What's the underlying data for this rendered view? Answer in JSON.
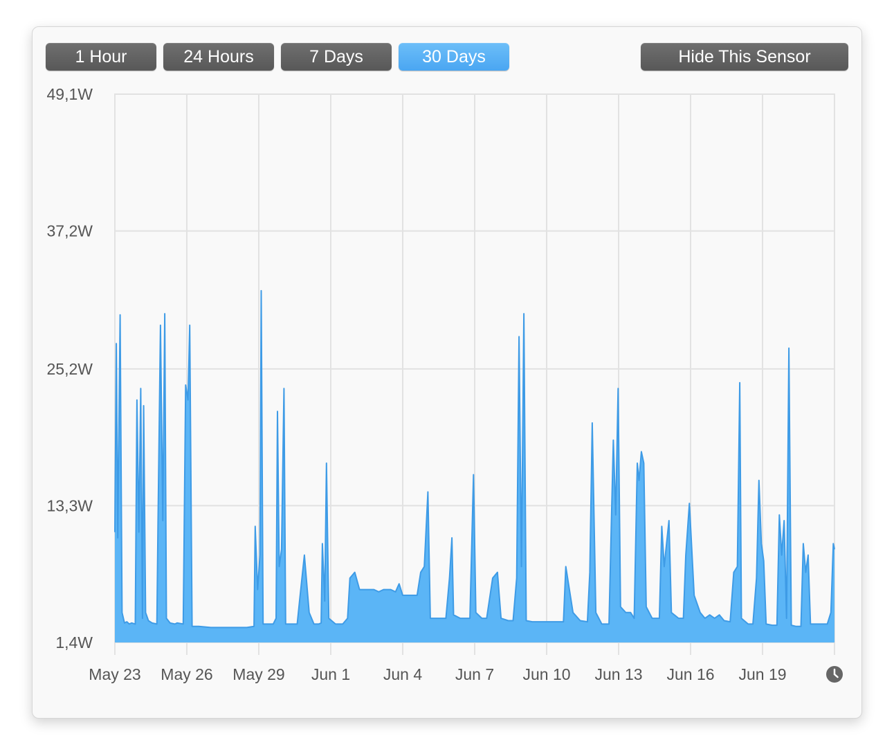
{
  "range_buttons": [
    {
      "label": "1 Hour",
      "active": false
    },
    {
      "label": "24 Hours",
      "active": false
    },
    {
      "label": "7 Days",
      "active": false
    },
    {
      "label": "30 Days",
      "active": true
    }
  ],
  "hide_button_label": "Hide This Sensor",
  "clock_icon": "clock-icon",
  "colors": {
    "accent": "#5ab4f5",
    "fill": "#5bb5f6",
    "stroke": "#3e9be6",
    "grid": "#e2e2e2",
    "button": "#646464"
  },
  "chart_data": {
    "type": "area",
    "title": "",
    "xlabel": "",
    "ylabel": "",
    "y_tick_labels": [
      "49,1W",
      "37,2W",
      "25,2W",
      "13,3W",
      "1,4W"
    ],
    "y_ticks": [
      49.1,
      37.2,
      25.2,
      13.3,
      1.4
    ],
    "ylim": [
      1.4,
      49.1
    ],
    "x_tick_labels": [
      "May 23",
      "May 26",
      "May 29",
      "Jun 1",
      "Jun 4",
      "Jun 7",
      "Jun 10",
      "Jun 13",
      "Jun 16",
      "Jun 19"
    ],
    "x_ticks": [
      0,
      3,
      6,
      9,
      12,
      15,
      18,
      21,
      24,
      27
    ],
    "xlim": [
      0,
      30
    ],
    "x_units": "days since May 23",
    "grid": true,
    "series": [
      {
        "name": "",
        "points": [
          [
            0.0,
            11.0
          ],
          [
            0.06,
            27.4
          ],
          [
            0.12,
            10.5
          ],
          [
            0.22,
            29.9
          ],
          [
            0.3,
            4.0
          ],
          [
            0.4,
            3.1
          ],
          [
            0.5,
            3.2
          ],
          [
            0.6,
            3.0
          ],
          [
            0.7,
            3.1
          ],
          [
            0.85,
            3.0
          ],
          [
            0.92,
            22.5
          ],
          [
            1.0,
            11.0
          ],
          [
            1.08,
            23.5
          ],
          [
            1.15,
            3.5
          ],
          [
            1.2,
            22.0
          ],
          [
            1.28,
            4.0
          ],
          [
            1.4,
            3.3
          ],
          [
            1.55,
            3.1
          ],
          [
            1.75,
            3.0
          ],
          [
            1.8,
            12.0
          ],
          [
            1.9,
            29.0
          ],
          [
            2.0,
            12.0
          ],
          [
            2.08,
            30.0
          ],
          [
            2.15,
            3.5
          ],
          [
            2.3,
            3.1
          ],
          [
            2.5,
            3.0
          ],
          [
            2.6,
            3.1
          ],
          [
            2.85,
            3.0
          ],
          [
            2.95,
            23.8
          ],
          [
            3.05,
            22.5
          ],
          [
            3.12,
            29.0
          ],
          [
            3.22,
            2.8
          ],
          [
            3.5,
            2.8
          ],
          [
            4.0,
            2.7
          ],
          [
            4.5,
            2.7
          ],
          [
            5.0,
            2.7
          ],
          [
            5.5,
            2.7
          ],
          [
            5.8,
            2.8
          ],
          [
            5.85,
            11.5
          ],
          [
            5.95,
            6.0
          ],
          [
            6.05,
            9.0
          ],
          [
            6.1,
            32.0
          ],
          [
            6.18,
            3.0
          ],
          [
            6.4,
            3.0
          ],
          [
            6.6,
            3.0
          ],
          [
            6.72,
            3.5
          ],
          [
            6.78,
            21.5
          ],
          [
            6.85,
            8.0
          ],
          [
            6.95,
            9.5
          ],
          [
            7.05,
            23.5
          ],
          [
            7.12,
            3.0
          ],
          [
            7.4,
            3.0
          ],
          [
            7.6,
            3.0
          ],
          [
            7.7,
            5.0
          ],
          [
            7.8,
            7.0
          ],
          [
            7.9,
            9.0
          ],
          [
            8.1,
            4.0
          ],
          [
            8.3,
            3.0
          ],
          [
            8.5,
            3.0
          ],
          [
            8.6,
            3.1
          ],
          [
            8.65,
            10.0
          ],
          [
            8.75,
            5.0
          ],
          [
            8.82,
            17.0
          ],
          [
            8.92,
            3.5
          ],
          [
            9.2,
            3.0
          ],
          [
            9.5,
            3.0
          ],
          [
            9.7,
            3.5
          ],
          [
            9.8,
            7.0
          ],
          [
            10.0,
            7.5
          ],
          [
            10.2,
            6.0
          ],
          [
            10.5,
            6.0
          ],
          [
            10.8,
            6.0
          ],
          [
            11.0,
            5.8
          ],
          [
            11.2,
            6.0
          ],
          [
            11.5,
            6.0
          ],
          [
            11.7,
            5.8
          ],
          [
            11.85,
            6.5
          ],
          [
            12.0,
            5.5
          ],
          [
            12.3,
            5.5
          ],
          [
            12.6,
            5.5
          ],
          [
            12.75,
            7.5
          ],
          [
            12.9,
            8.0
          ],
          [
            13.05,
            14.5
          ],
          [
            13.15,
            3.5
          ],
          [
            13.5,
            3.5
          ],
          [
            13.8,
            3.5
          ],
          [
            13.95,
            7.0
          ],
          [
            14.05,
            10.5
          ],
          [
            14.12,
            3.8
          ],
          [
            14.4,
            3.5
          ],
          [
            14.6,
            3.5
          ],
          [
            14.8,
            3.5
          ],
          [
            14.95,
            16.0
          ],
          [
            15.05,
            4.0
          ],
          [
            15.3,
            3.5
          ],
          [
            15.5,
            3.5
          ],
          [
            15.75,
            7.0
          ],
          [
            15.95,
            7.5
          ],
          [
            16.1,
            3.5
          ],
          [
            16.4,
            3.3
          ],
          [
            16.6,
            3.3
          ],
          [
            16.75,
            7.0
          ],
          [
            16.85,
            28.0
          ],
          [
            16.95,
            8.0
          ],
          [
            17.05,
            30.0
          ],
          [
            17.15,
            3.3
          ],
          [
            17.4,
            3.2
          ],
          [
            17.7,
            3.2
          ],
          [
            18.0,
            3.2
          ],
          [
            18.3,
            3.2
          ],
          [
            18.7,
            3.2
          ],
          [
            18.8,
            8.0
          ],
          [
            18.95,
            6.0
          ],
          [
            19.1,
            4.0
          ],
          [
            19.4,
            3.3
          ],
          [
            19.7,
            3.2
          ],
          [
            19.8,
            7.5
          ],
          [
            19.9,
            20.5
          ],
          [
            20.05,
            4.0
          ],
          [
            20.3,
            3.0
          ],
          [
            20.6,
            3.0
          ],
          [
            20.7,
            12.0
          ],
          [
            20.78,
            19.0
          ],
          [
            20.88,
            12.5
          ],
          [
            20.98,
            23.5
          ],
          [
            21.08,
            4.5
          ],
          [
            21.3,
            4.0
          ],
          [
            21.5,
            4.0
          ],
          [
            21.65,
            3.5
          ],
          [
            21.78,
            17.0
          ],
          [
            21.85,
            15.5
          ],
          [
            21.95,
            18.0
          ],
          [
            22.05,
            17.0
          ],
          [
            22.15,
            4.5
          ],
          [
            22.4,
            3.5
          ],
          [
            22.7,
            3.5
          ],
          [
            22.8,
            11.5
          ],
          [
            22.9,
            8.0
          ],
          [
            23.0,
            10.0
          ],
          [
            23.1,
            12.0
          ],
          [
            23.2,
            4.0
          ],
          [
            23.5,
            3.5
          ],
          [
            23.7,
            3.5
          ],
          [
            23.8,
            9.0
          ],
          [
            23.95,
            13.5
          ],
          [
            24.15,
            5.5
          ],
          [
            24.4,
            4.0
          ],
          [
            24.6,
            3.5
          ],
          [
            24.8,
            3.8
          ],
          [
            25.0,
            3.5
          ],
          [
            25.2,
            3.8
          ],
          [
            25.4,
            3.3
          ],
          [
            25.65,
            3.2
          ],
          [
            25.8,
            7.5
          ],
          [
            25.95,
            8.0
          ],
          [
            26.05,
            24.0
          ],
          [
            26.12,
            3.5
          ],
          [
            26.4,
            3.0
          ],
          [
            26.6,
            3.0
          ],
          [
            26.75,
            7.0
          ],
          [
            26.85,
            15.5
          ],
          [
            26.95,
            10.0
          ],
          [
            27.05,
            8.5
          ],
          [
            27.15,
            3.0
          ],
          [
            27.4,
            2.9
          ],
          [
            27.6,
            2.9
          ],
          [
            27.7,
            12.5
          ],
          [
            27.8,
            9.0
          ],
          [
            27.9,
            12.0
          ],
          [
            28.0,
            3.5
          ],
          [
            28.1,
            27.0
          ],
          [
            28.2,
            2.9
          ],
          [
            28.4,
            2.8
          ],
          [
            28.6,
            2.8
          ],
          [
            28.7,
            10.0
          ],
          [
            28.8,
            7.5
          ],
          [
            28.9,
            9.0
          ],
          [
            29.0,
            3.0
          ],
          [
            29.2,
            3.0
          ],
          [
            29.5,
            3.0
          ],
          [
            29.7,
            3.0
          ],
          [
            29.85,
            4.0
          ],
          [
            29.95,
            10.0
          ],
          [
            30.0,
            9.5
          ]
        ]
      }
    ]
  }
}
